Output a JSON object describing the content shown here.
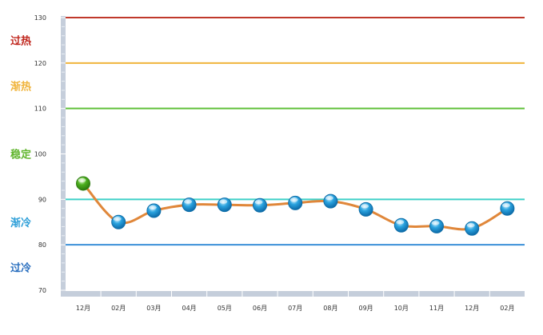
{
  "chart_data": {
    "type": "line",
    "categories": [
      "12月",
      "02月",
      "03月",
      "04月",
      "05月",
      "06月",
      "07月",
      "08月",
      "09月",
      "10月",
      "11月",
      "12月",
      "02月"
    ],
    "values": [
      93.5,
      85,
      87.5,
      88.8,
      88.8,
      88.7,
      89.2,
      89.6,
      87.8,
      84.3,
      84.1,
      83.6,
      88
    ],
    "ylim": [
      70,
      130
    ],
    "yticks": [
      70,
      80,
      90,
      100,
      110,
      120,
      130
    ],
    "grid": false,
    "line_color": "#e0873a",
    "marker_color": "#2aa3df",
    "first_marker_color": "#4caf1e",
    "thresholds": [
      {
        "value": 130,
        "color": "#c0392b"
      },
      {
        "value": 120,
        "color": "#f0b43c"
      },
      {
        "value": 110,
        "color": "#62c13c"
      },
      {
        "value": 90,
        "color": "#3fd0c8"
      },
      {
        "value": 80,
        "color": "#3a8fd8"
      }
    ],
    "zones": [
      {
        "label": "过热",
        "value": 125,
        "color": "#c0271e"
      },
      {
        "label": "渐热",
        "value": 115,
        "color": "#f0b43c"
      },
      {
        "label": "稳定",
        "value": 100,
        "color": "#62b62f"
      },
      {
        "label": "渐冷",
        "value": 85,
        "color": "#2e9fd8"
      },
      {
        "label": "过冷",
        "value": 75,
        "color": "#2a6fbf"
      }
    ]
  }
}
